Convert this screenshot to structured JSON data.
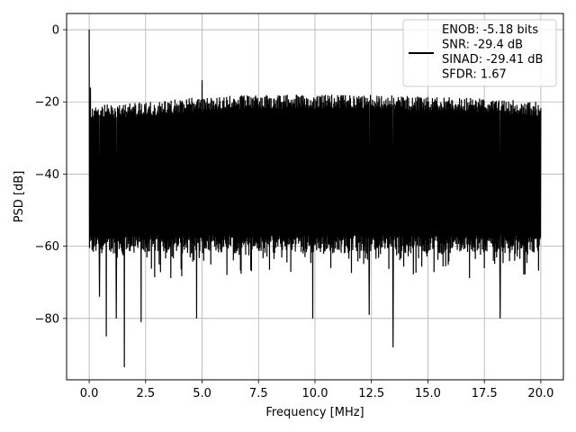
{
  "chart_data": {
    "type": "line",
    "title": "",
    "xlabel": "Frequency [MHz]",
    "ylabel": "PSD [dB]",
    "xlim": [
      -1.0,
      21.0
    ],
    "ylim": [
      -97.0,
      4.5
    ],
    "xticks": [
      0.0,
      2.5,
      5.0,
      7.5,
      10.0,
      12.5,
      15.0,
      17.5,
      20.0
    ],
    "xtick_labels": [
      "0.0",
      "2.5",
      "5.0",
      "7.5",
      "10.0",
      "12.5",
      "15.0",
      "17.5",
      "20.0"
    ],
    "yticks": [
      0,
      -20,
      -40,
      -60,
      -80
    ],
    "ytick_labels": [
      "0",
      "−20",
      "−40",
      "−60",
      "−80"
    ],
    "grid": true,
    "legend_position": "upper-right",
    "series": [
      {
        "name": "ENOB: -5.18 bits\nSNR: -29.4 dB\nSINAD: -29.41 dB\nSFDR: 1.67",
        "color": "#000000",
        "x_range": [
          0.0,
          20.0
        ],
        "band_upper": [
          [
            0.0,
            -21
          ],
          [
            2.5,
            -20
          ],
          [
            5.0,
            -18.5
          ],
          [
            7.5,
            -18
          ],
          [
            10.0,
            -18
          ],
          [
            12.5,
            -18
          ],
          [
            15.0,
            -18.5
          ],
          [
            17.5,
            -19
          ],
          [
            20.0,
            -20
          ]
        ],
        "band_lower": [
          [
            0.0,
            -60
          ],
          [
            2.5,
            -60
          ],
          [
            5.0,
            -60
          ],
          [
            7.5,
            -60
          ],
          [
            10.0,
            -60
          ],
          [
            12.5,
            -60
          ],
          [
            15.0,
            -60
          ],
          [
            17.5,
            -60
          ],
          [
            20.0,
            -60
          ]
        ],
        "peaks": [
          [
            0.0,
            0.0
          ],
          [
            0.05,
            -16
          ],
          [
            5.0,
            -14
          ]
        ],
        "dips": [
          [
            0.45,
            -74
          ],
          [
            0.75,
            -85
          ],
          [
            1.2,
            -80
          ],
          [
            1.55,
            -93.5
          ],
          [
            2.3,
            -81
          ],
          [
            4.75,
            -80
          ],
          [
            9.9,
            -80
          ],
          [
            12.4,
            -79
          ],
          [
            13.45,
            -88
          ],
          [
            18.2,
            -80
          ]
        ]
      }
    ]
  }
}
